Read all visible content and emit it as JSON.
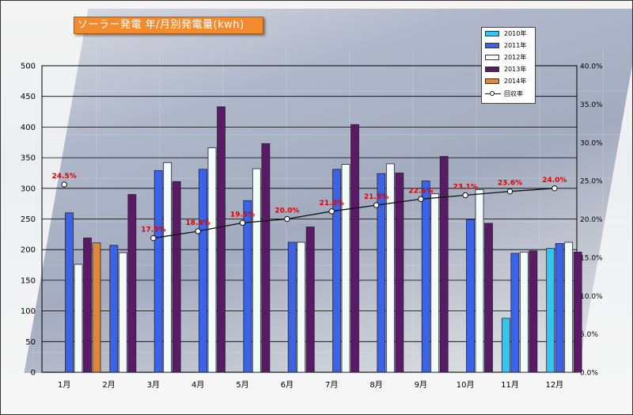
{
  "chart_data": {
    "type": "bar",
    "title": "ソーラー発電 年/月別発電量(kwh)",
    "categories": [
      "1月",
      "2月",
      "3月",
      "4月",
      "5月",
      "6月",
      "7月",
      "8月",
      "9月",
      "10月",
      "11月",
      "12月"
    ],
    "series": [
      {
        "name": "2010年",
        "color": "#33c6ee",
        "values": [
          null,
          null,
          null,
          null,
          null,
          null,
          null,
          null,
          null,
          null,
          88,
          202
        ]
      },
      {
        "name": "2011年",
        "color": "#3a63e8",
        "values": [
          260,
          207,
          329,
          331,
          280,
          212,
          331,
          324,
          312,
          249,
          194,
          210
        ]
      },
      {
        "name": "2012年",
        "color": "#f2fbf8",
        "values": [
          176,
          195,
          342,
          366,
          332,
          212,
          339,
          340,
          291,
          298,
          196,
          212
        ]
      },
      {
        "name": "2013年",
        "color": "#5a1a66",
        "values": [
          219,
          290,
          311,
          433,
          373,
          237,
          404,
          325,
          352,
          243,
          198,
          196
        ]
      },
      {
        "name": "2014年",
        "color": "#e0883a",
        "values": [
          211,
          null,
          null,
          null,
          null,
          null,
          null,
          null,
          null,
          null,
          null,
          null
        ]
      }
    ],
    "line_series": {
      "name": "回収率",
      "axis": "right",
      "values": [
        24.5,
        null,
        17.5,
        18.4,
        19.5,
        20.0,
        21.0,
        21.8,
        22.6,
        23.1,
        23.6,
        24.0
      ],
      "labels": [
        "24.5%",
        "",
        "17.5%",
        "18.4%",
        "19.5%",
        "20.0%",
        "21.0%",
        "21.8%",
        "22.6%",
        "23.1%",
        "23.6%",
        "24.0%"
      ]
    },
    "ylim": [
      0,
      500
    ],
    "yticks": [
      "0",
      "50",
      "100",
      "150",
      "200",
      "250",
      "300",
      "350",
      "400",
      "450",
      "500"
    ],
    "y2lim": [
      0,
      40
    ],
    "y2ticks": [
      "0.0%",
      "5.0%",
      "10.0%",
      "15.0%",
      "20.0%",
      "25.0%",
      "30.0%",
      "35.0%",
      "40.0%"
    ],
    "grid": true,
    "legend_position": "top-right"
  }
}
